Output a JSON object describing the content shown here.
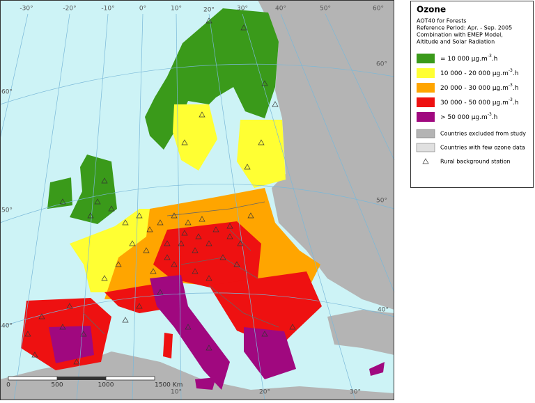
{
  "map": {
    "graticule_labels": {
      "top": [
        "-30°",
        "-20°",
        "-10°",
        "0°",
        "10°",
        "20°",
        "30°",
        "40°",
        "50°",
        "60°"
      ],
      "left": [
        "60°",
        "50°",
        "40°"
      ],
      "right": [
        "60°",
        "50°",
        "40°"
      ],
      "bottom": [
        "10°",
        "20°",
        "30°"
      ]
    },
    "scale_bar": [
      "0",
      "500",
      "1000",
      "1500 Km"
    ]
  },
  "legend": {
    "title": "Ozone",
    "subtitle": [
      "AOT40 for Forests",
      "Reference Period: Apr. - Sep. 2005",
      "Combination with EMEP Model,",
      "Altitude and Solar Radiation"
    ],
    "classes": [
      {
        "label": "= 10 000 µg.m",
        "sup": "-3",
        "end": ".h",
        "color": "#3a9a1a"
      },
      {
        "label": "10 000 - 20 000 µg.m",
        "sup": "-3",
        "end": ".h",
        "color": "#ffff33"
      },
      {
        "label": "20 000 - 30 000 µg.m",
        "sup": "-3",
        "end": ".h",
        "color": "#ffa500"
      },
      {
        "label": "30 000 - 50 000 µg.m",
        "sup": "-3",
        "end": ".h",
        "color": "#ee1111"
      },
      {
        "label": "> 50 000 µg.m",
        "sup": "-3",
        "end": ".h",
        "color": "#a0087f"
      }
    ],
    "other": [
      {
        "label": "Countries excluded from study",
        "color": "#b4b4b4"
      },
      {
        "label": "Countries with few ozone data",
        "color": "#e0e0e0"
      },
      {
        "label": "Rural background station"
      }
    ]
  }
}
